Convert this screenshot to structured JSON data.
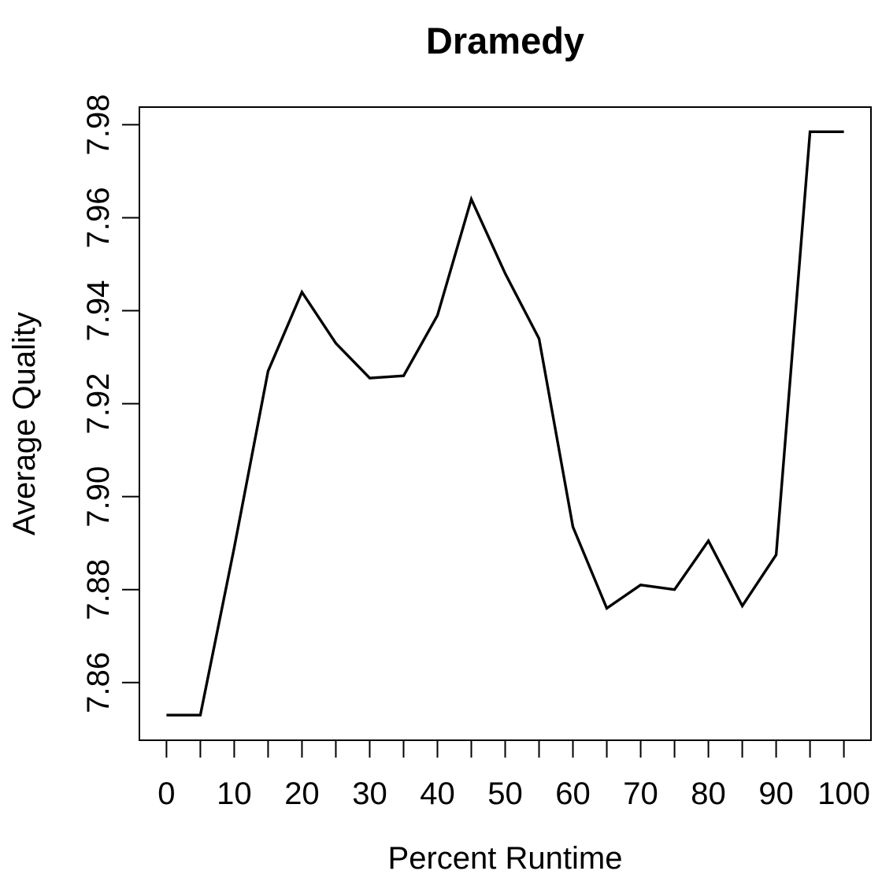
{
  "title": "Dramedy",
  "chart_data": {
    "type": "line",
    "title": "Dramedy",
    "xlabel": "Percent Runtime",
    "ylabel": "Average Quality",
    "x": [
      0,
      5,
      10,
      15,
      20,
      25,
      30,
      35,
      40,
      45,
      50,
      55,
      60,
      65,
      70,
      75,
      80,
      85,
      90,
      95,
      100
    ],
    "series": [
      {
        "name": "Average Quality",
        "values": [
          7.853,
          7.853,
          7.889,
          7.927,
          7.944,
          7.933,
          7.9255,
          7.926,
          7.939,
          7.964,
          7.948,
          7.934,
          7.8935,
          7.876,
          7.881,
          7.88,
          7.8905,
          7.8765,
          7.8875,
          7.9785,
          7.9785
        ]
      }
    ],
    "x_ticks": [
      0,
      5,
      10,
      15,
      20,
      25,
      30,
      35,
      40,
      45,
      50,
      55,
      60,
      65,
      70,
      75,
      80,
      85,
      90,
      95,
      100
    ],
    "x_tick_labels": [
      "0",
      "",
      "10",
      "",
      "20",
      "",
      "30",
      "",
      "40",
      "",
      "50",
      "",
      "60",
      "",
      "70",
      "",
      "80",
      "",
      "90",
      "",
      "100"
    ],
    "y_ticks": [
      7.86,
      7.88,
      7.9,
      7.92,
      7.94,
      7.96,
      7.98
    ],
    "y_tick_labels": [
      "7.86",
      "7.88",
      "7.90",
      "7.92",
      "7.94",
      "7.96",
      "7.98"
    ],
    "xlim": [
      -4,
      104
    ],
    "ylim": [
      7.8476,
      7.9838
    ],
    "grid": false,
    "legend": "none",
    "line_color": "#000000",
    "axis_color": "#000000",
    "text_color": "#000000",
    "background": "#ffffff"
  }
}
